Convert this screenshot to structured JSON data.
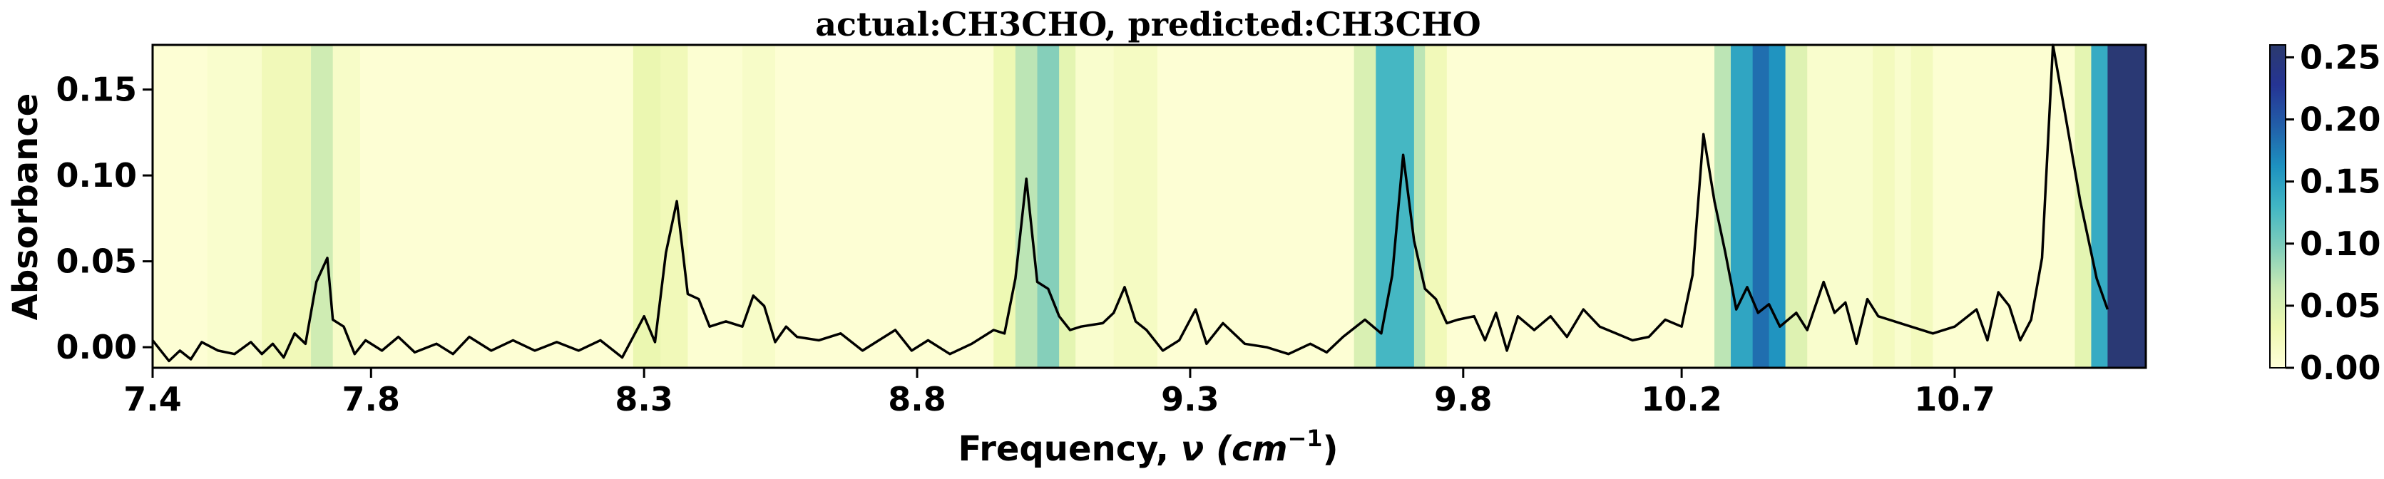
{
  "chart_data": {
    "type": "line",
    "title": "actual:CH3CHO, predicted:CH3CHO",
    "xlabel": "Frequency, ν (cm⁻¹)",
    "xlabel_plain": "Frequency, ",
    "xlabel_nu": "ν",
    "xlabel_unit": "(cm",
    "xlabel_sup": "−1",
    "xlabel_close": ")",
    "ylabel": "Absorbance",
    "xlim": [
      7.4,
      11.05
    ],
    "ylim": [
      -0.012,
      0.176
    ],
    "x_ticks": [
      7.4,
      7.8,
      8.3,
      8.8,
      9.3,
      9.8,
      10.2,
      10.7
    ],
    "x_tick_labels": [
      "7.4",
      "7.8",
      "8.3",
      "8.8",
      "9.3",
      "9.8",
      "10.2",
      "10.7"
    ],
    "y_ticks": [
      0.0,
      0.05,
      0.1,
      0.15
    ],
    "y_tick_labels": [
      "0.00",
      "0.05",
      "0.10",
      "0.15"
    ],
    "grid": false,
    "series": [
      {
        "type": "line",
        "color": "#000000",
        "points": [
          [
            7.4,
            0.004
          ],
          [
            7.43,
            -0.008
          ],
          [
            7.45,
            -0.002
          ],
          [
            7.47,
            -0.007
          ],
          [
            7.49,
            0.003
          ],
          [
            7.52,
            -0.002
          ],
          [
            7.55,
            -0.004
          ],
          [
            7.58,
            0.003
          ],
          [
            7.6,
            -0.004
          ],
          [
            7.62,
            0.002
          ],
          [
            7.64,
            -0.006
          ],
          [
            7.66,
            0.008
          ],
          [
            7.68,
            0.002
          ],
          [
            7.7,
            0.038
          ],
          [
            7.72,
            0.052
          ],
          [
            7.73,
            0.016
          ],
          [
            7.75,
            0.012
          ],
          [
            7.77,
            -0.004
          ],
          [
            7.79,
            0.004
          ],
          [
            7.82,
            -0.002
          ],
          [
            7.85,
            0.006
          ],
          [
            7.88,
            -0.003
          ],
          [
            7.92,
            0.002
          ],
          [
            7.95,
            -0.004
          ],
          [
            7.98,
            0.006
          ],
          [
            8.02,
            -0.002
          ],
          [
            8.06,
            0.004
          ],
          [
            8.1,
            -0.002
          ],
          [
            8.14,
            0.003
          ],
          [
            8.18,
            -0.002
          ],
          [
            8.22,
            0.004
          ],
          [
            8.26,
            -0.006
          ],
          [
            8.28,
            0.006
          ],
          [
            8.3,
            0.018
          ],
          [
            8.32,
            0.003
          ],
          [
            8.34,
            0.055
          ],
          [
            8.36,
            0.085
          ],
          [
            8.38,
            0.031
          ],
          [
            8.4,
            0.028
          ],
          [
            8.42,
            0.012
          ],
          [
            8.45,
            0.015
          ],
          [
            8.48,
            0.012
          ],
          [
            8.5,
            0.03
          ],
          [
            8.52,
            0.024
          ],
          [
            8.54,
            0.003
          ],
          [
            8.56,
            0.012
          ],
          [
            8.58,
            0.006
          ],
          [
            8.62,
            0.004
          ],
          [
            8.66,
            0.008
          ],
          [
            8.7,
            -0.002
          ],
          [
            8.73,
            0.004
          ],
          [
            8.76,
            0.01
          ],
          [
            8.79,
            -0.002
          ],
          [
            8.82,
            0.004
          ],
          [
            8.86,
            -0.004
          ],
          [
            8.9,
            0.002
          ],
          [
            8.94,
            0.01
          ],
          [
            8.96,
            0.008
          ],
          [
            8.98,
            0.04
          ],
          [
            9.0,
            0.098
          ],
          [
            9.02,
            0.038
          ],
          [
            9.04,
            0.034
          ],
          [
            9.06,
            0.018
          ],
          [
            9.08,
            0.01
          ],
          [
            9.1,
            0.012
          ],
          [
            9.14,
            0.014
          ],
          [
            9.16,
            0.02
          ],
          [
            9.18,
            0.035
          ],
          [
            9.2,
            0.015
          ],
          [
            9.22,
            0.01
          ],
          [
            9.25,
            -0.002
          ],
          [
            9.28,
            0.004
          ],
          [
            9.31,
            0.022
          ],
          [
            9.33,
            0.002
          ],
          [
            9.36,
            0.014
          ],
          [
            9.4,
            0.002
          ],
          [
            9.44,
            0.0
          ],
          [
            9.48,
            -0.004
          ],
          [
            9.52,
            0.002
          ],
          [
            9.55,
            -0.003
          ],
          [
            9.58,
            0.006
          ],
          [
            9.62,
            0.016
          ],
          [
            9.65,
            0.008
          ],
          [
            9.67,
            0.042
          ],
          [
            9.69,
            0.112
          ],
          [
            9.71,
            0.062
          ],
          [
            9.73,
            0.034
          ],
          [
            9.75,
            0.028
          ],
          [
            9.77,
            0.014
          ],
          [
            9.79,
            0.016
          ],
          [
            9.82,
            0.018
          ],
          [
            9.84,
            0.004
          ],
          [
            9.86,
            0.02
          ],
          [
            9.88,
            -0.002
          ],
          [
            9.9,
            0.018
          ],
          [
            9.93,
            0.01
          ],
          [
            9.96,
            0.018
          ],
          [
            9.99,
            0.006
          ],
          [
            10.02,
            0.022
          ],
          [
            10.05,
            0.012
          ],
          [
            10.08,
            0.008
          ],
          [
            10.11,
            0.004
          ],
          [
            10.14,
            0.006
          ],
          [
            10.17,
            0.016
          ],
          [
            10.2,
            0.012
          ],
          [
            10.22,
            0.042
          ],
          [
            10.24,
            0.124
          ],
          [
            10.26,
            0.085
          ],
          [
            10.28,
            0.055
          ],
          [
            10.3,
            0.022
          ],
          [
            10.32,
            0.035
          ],
          [
            10.34,
            0.02
          ],
          [
            10.36,
            0.025
          ],
          [
            10.38,
            0.012
          ],
          [
            10.41,
            0.02
          ],
          [
            10.43,
            0.01
          ],
          [
            10.46,
            0.038
          ],
          [
            10.48,
            0.02
          ],
          [
            10.5,
            0.026
          ],
          [
            10.52,
            0.002
          ],
          [
            10.54,
            0.028
          ],
          [
            10.56,
            0.018
          ],
          [
            10.58,
            0.016
          ],
          [
            10.62,
            0.012
          ],
          [
            10.66,
            0.008
          ],
          [
            10.7,
            0.012
          ],
          [
            10.74,
            0.022
          ],
          [
            10.76,
            0.004
          ],
          [
            10.78,
            0.032
          ],
          [
            10.8,
            0.024
          ],
          [
            10.82,
            0.004
          ],
          [
            10.84,
            0.016
          ],
          [
            10.86,
            0.052
          ],
          [
            10.88,
            0.176
          ],
          [
            10.9,
            0.14
          ],
          [
            10.93,
            0.085
          ],
          [
            10.96,
            0.04
          ],
          [
            10.98,
            0.022
          ]
        ]
      }
    ],
    "importance_bands": [
      {
        "x0": 7.4,
        "x1": 7.5,
        "v": 0.004
      },
      {
        "x0": 7.5,
        "x1": 7.6,
        "v": 0.01
      },
      {
        "x0": 7.6,
        "x1": 7.69,
        "v": 0.026
      },
      {
        "x0": 7.69,
        "x1": 7.73,
        "v": 0.058
      },
      {
        "x0": 7.73,
        "x1": 7.78,
        "v": 0.014
      },
      {
        "x0": 7.78,
        "x1": 8.28,
        "v": 0.004
      },
      {
        "x0": 8.28,
        "x1": 8.33,
        "v": 0.034
      },
      {
        "x0": 8.33,
        "x1": 8.38,
        "v": 0.026
      },
      {
        "x0": 8.38,
        "x1": 8.48,
        "v": 0.006
      },
      {
        "x0": 8.48,
        "x1": 8.54,
        "v": 0.014
      },
      {
        "x0": 8.54,
        "x1": 8.94,
        "v": 0.004
      },
      {
        "x0": 8.94,
        "x1": 8.98,
        "v": 0.03
      },
      {
        "x0": 8.98,
        "x1": 9.02,
        "v": 0.07
      },
      {
        "x0": 9.02,
        "x1": 9.06,
        "v": 0.095
      },
      {
        "x0": 9.06,
        "x1": 9.09,
        "v": 0.04
      },
      {
        "x0": 9.09,
        "x1": 9.16,
        "v": 0.01
      },
      {
        "x0": 9.16,
        "x1": 9.24,
        "v": 0.018
      },
      {
        "x0": 9.24,
        "x1": 9.6,
        "v": 0.004
      },
      {
        "x0": 9.6,
        "x1": 9.64,
        "v": 0.05
      },
      {
        "x0": 9.64,
        "x1": 9.71,
        "v": 0.128
      },
      {
        "x0": 9.71,
        "x1": 9.73,
        "v": 0.07
      },
      {
        "x0": 9.73,
        "x1": 9.77,
        "v": 0.026
      },
      {
        "x0": 9.77,
        "x1": 10.26,
        "v": 0.004
      },
      {
        "x0": 10.26,
        "x1": 10.29,
        "v": 0.07
      },
      {
        "x0": 10.29,
        "x1": 10.33,
        "v": 0.145
      },
      {
        "x0": 10.33,
        "x1": 10.36,
        "v": 0.185
      },
      {
        "x0": 10.36,
        "x1": 10.39,
        "v": 0.16
      },
      {
        "x0": 10.39,
        "x1": 10.43,
        "v": 0.045
      },
      {
        "x0": 10.43,
        "x1": 10.55,
        "v": 0.01
      },
      {
        "x0": 10.55,
        "x1": 10.59,
        "v": 0.022
      },
      {
        "x0": 10.59,
        "x1": 10.62,
        "v": 0.01
      },
      {
        "x0": 10.62,
        "x1": 10.66,
        "v": 0.022
      },
      {
        "x0": 10.66,
        "x1": 10.92,
        "v": 0.006
      },
      {
        "x0": 10.92,
        "x1": 10.95,
        "v": 0.04
      },
      {
        "x0": 10.95,
        "x1": 10.98,
        "v": 0.14
      },
      {
        "x0": 10.98,
        "x1": 11.05,
        "v": 0.255
      }
    ],
    "colorbar": {
      "colormap": "YlGnBu",
      "min": 0.0,
      "max": 0.26,
      "ticks": [
        0.0,
        0.05,
        0.1,
        0.15,
        0.2,
        0.25
      ],
      "tick_labels": [
        "0.00",
        "0.05",
        "0.10",
        "0.15",
        "0.20",
        "0.25"
      ],
      "stops": [
        "#ffffd9",
        "#edf8b1",
        "#c7e9b4",
        "#7fcdbb",
        "#41b6c4",
        "#1d91c0",
        "#225ea8",
        "#253494",
        "#2b3a6e"
      ]
    }
  }
}
